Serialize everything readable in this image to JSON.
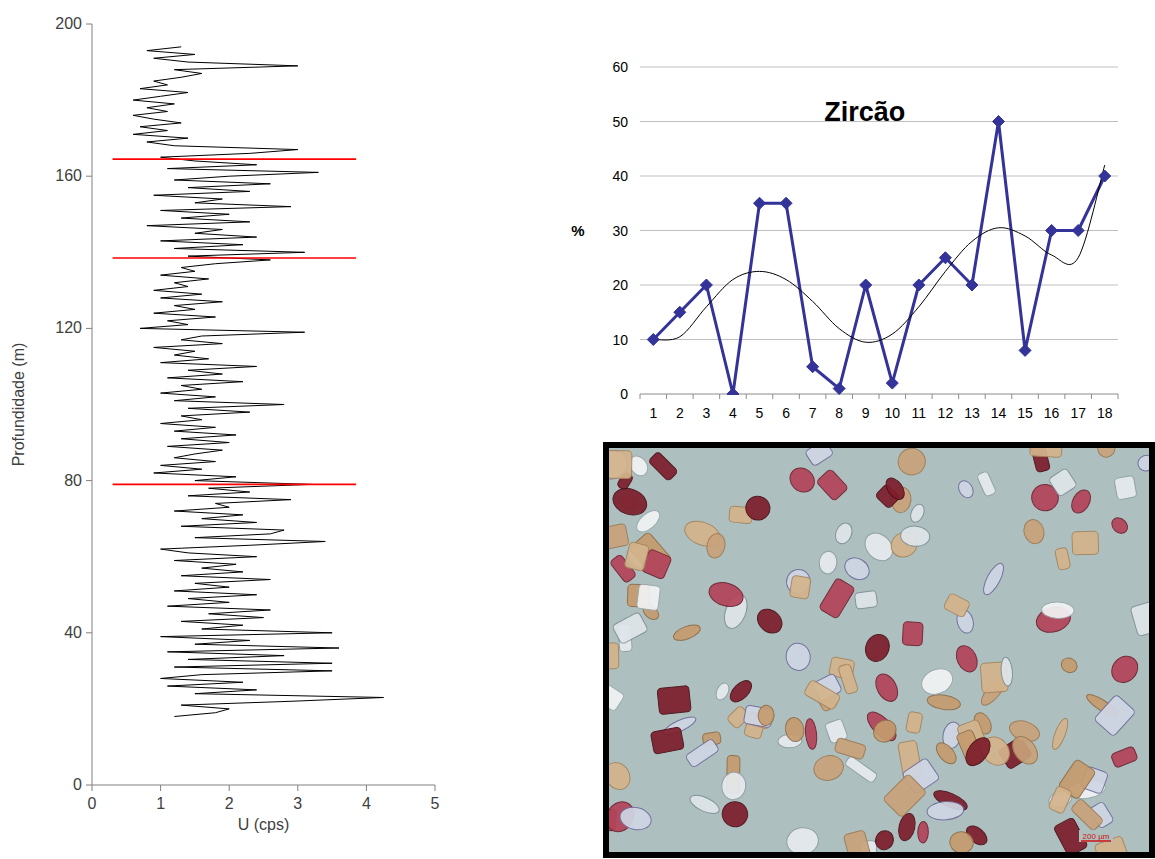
{
  "chart_data": [
    {
      "type": "line",
      "x_label": "U (cps)",
      "y_label": "Profundidade (m)",
      "xlim": [
        0,
        5
      ],
      "xticks": [
        0,
        1,
        2,
        3,
        4,
        5
      ],
      "ylim": [
        0,
        200
      ],
      "yticks": [
        0,
        40,
        80,
        120,
        160,
        200
      ],
      "grid": false,
      "hlines": {
        "values": [
          164.5,
          138.5,
          79
        ],
        "from": 0.3,
        "to": 3.85,
        "color": "#ff0000"
      },
      "series": [
        {
          "color": "#000000",
          "line_style": "solid",
          "marker": "none",
          "x": [
            1.2,
            1.8,
            2.0,
            1.3,
            2.9,
            4.25,
            1.5,
            2.4,
            1.1,
            2.2,
            1.0,
            1.6,
            3.5,
            1.2,
            3.5,
            1.4,
            2.8,
            1.1,
            3.6,
            1.5,
            2.3,
            1.0,
            3.5,
            1.6,
            2.2,
            1.3,
            2.5,
            1.7,
            2.6,
            1.1,
            2.0,
            1.4,
            2.4,
            1.2,
            2.0,
            1.5,
            2.6,
            1.3,
            2.2,
            1.6,
            2.1,
            1.2,
            2.4,
            1.4,
            1.0,
            2.3,
            3.4,
            1.5,
            2.6,
            2.8,
            1.3,
            2.4,
            1.6,
            2.2,
            1.2,
            2.0,
            1.8,
            2.9,
            1.4,
            2.3,
            1.7,
            3.2,
            1.5,
            2.1,
            0.9,
            1.6,
            1.0,
            1.8,
            1.2,
            1.5,
            1.9,
            1.1,
            2.0,
            1.3,
            2.1,
            1.2,
            1.8,
            1.0,
            1.6,
            1.3,
            2.3,
            1.4,
            2.8,
            1.2,
            1.8,
            1.0,
            1.6,
            1.3,
            2.2,
            1.1,
            1.9,
            1.4,
            2.4,
            1.0,
            1.7,
            1.2,
            1.5,
            0.9,
            1.9,
            1.3,
            1.6,
            3.1,
            0.7,
            1.4,
            1.1,
            1.8,
            0.9,
            1.5,
            1.2,
            1.9,
            1.0,
            1.6,
            0.9,
            1.4,
            1.2,
            1.7,
            1.0,
            1.5,
            1.3,
            1.8,
            2.6,
            1.4,
            3.1,
            1.2,
            2.2,
            1.0,
            2.4,
            1.5,
            1.9,
            0.8,
            2.3,
            1.3,
            2.0,
            1.0,
            2.9,
            1.5,
            1.9,
            0.9,
            2.3,
            1.4,
            2.6,
            1.2,
            2.0,
            3.3,
            1.1,
            2.4,
            1.5,
            1.0,
            2.3,
            3.0,
            1.2,
            0.8,
            1.4,
            0.6,
            1.1,
            0.7,
            1.3,
            0.9,
            0.6,
            1.1,
            0.8,
            1.2,
            0.6,
            1.0,
            1.4,
            0.7,
            1.1,
            0.9,
            1.3,
            1.6,
            1.2,
            3.0,
            1.4,
            0.9,
            1.5,
            0.8,
            1.3
          ],
          "values": [
            18,
            19,
            20,
            21,
            22,
            23,
            24,
            25,
            26,
            27,
            28,
            29,
            30,
            31,
            32,
            33,
            34,
            35,
            36,
            37,
            38,
            39,
            40,
            41,
            42,
            43,
            44,
            45,
            46,
            47,
            48,
            49,
            50,
            51,
            52,
            53,
            54,
            55,
            56,
            57,
            58,
            59,
            60,
            61,
            62,
            63,
            64,
            65,
            66,
            67,
            68,
            69,
            70,
            71,
            72,
            73,
            74,
            75,
            76,
            77,
            78,
            79,
            80,
            81,
            82,
            83,
            84,
            85,
            86,
            87,
            88,
            89,
            90,
            91,
            92,
            93,
            94,
            95,
            96,
            97,
            98,
            99,
            100,
            101,
            102,
            103,
            104,
            105,
            106,
            107,
            108,
            109,
            110,
            111,
            112,
            113,
            114,
            115,
            116,
            117,
            118,
            119,
            120,
            121,
            122,
            123,
            124,
            125,
            126,
            127,
            128,
            129,
            130,
            131,
            132,
            133,
            134,
            135,
            136,
            137,
            138,
            139,
            140,
            141,
            142,
            143,
            144,
            145,
            146,
            147,
            148,
            149,
            150,
            151,
            152,
            153,
            154,
            155,
            156,
            157,
            158,
            159,
            160,
            161,
            162,
            163,
            164,
            165,
            166,
            167,
            168,
            169,
            170,
            171,
            172,
            173,
            174,
            175,
            176,
            177,
            178,
            179,
            180,
            181,
            182,
            183,
            184,
            185,
            186,
            187,
            188,
            189,
            190,
            191,
            192,
            193,
            194
          ]
        }
      ]
    },
    {
      "type": "line",
      "title": "Zircão",
      "y_label": "%",
      "categories": [
        "1",
        "2",
        "3",
        "4",
        "5",
        "6",
        "7",
        "8",
        "9",
        "10",
        "11",
        "12",
        "13",
        "14",
        "15",
        "16",
        "17",
        "18"
      ],
      "ylim": [
        0,
        60
      ],
      "yticks": [
        0,
        10,
        20,
        30,
        40,
        50,
        60
      ],
      "grid": true,
      "series": [
        {
          "color": "#333399",
          "marker": "diamond",
          "line_style": "solid",
          "values": [
            10,
            15,
            20,
            0,
            35,
            35,
            5,
            1,
            20,
            2,
            20,
            25,
            20,
            50,
            8,
            30,
            30,
            40
          ]
        },
        {
          "color": "#000000",
          "marker": "none",
          "line_style": "smooth",
          "values": [
            10,
            10.5,
            16,
            21,
            22.5,
            21,
            17,
            12,
            9.5,
            11,
            16,
            22.5,
            28,
            30.5,
            29,
            25.5,
            25,
            42
          ]
        }
      ]
    }
  ],
  "image": {
    "scale_label": "200 µm"
  }
}
